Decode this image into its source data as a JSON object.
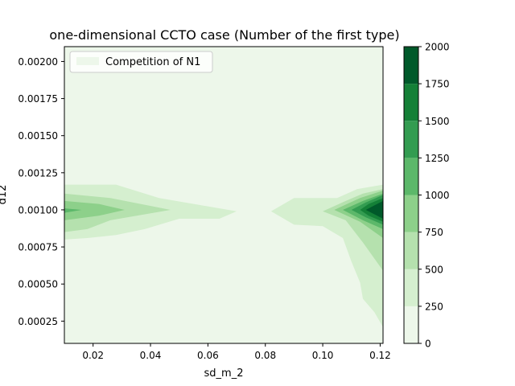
{
  "chart_data": {
    "type": "contourf",
    "title": "one-dimensional CCTO case (Number of the first type)",
    "xlabel": "sd_m_2",
    "ylabel": "d12",
    "xlim": [
      0.01,
      0.121
    ],
    "ylim": [
      0.0001,
      0.0021
    ],
    "xticks": [
      0.02,
      0.04,
      0.06,
      0.08,
      0.1,
      0.12
    ],
    "xtick_labels": [
      "0.02",
      "0.04",
      "0.06",
      "0.08",
      "0.10",
      "0.12"
    ],
    "yticks": [
      0.00025,
      0.0005,
      0.00075,
      0.001,
      0.00125,
      0.0015,
      0.00175,
      0.002
    ],
    "ytick_labels": [
      "0.00025",
      "0.00050",
      "0.00075",
      "0.00100",
      "0.00125",
      "0.00150",
      "0.00175",
      "0.00200"
    ],
    "legend": {
      "label": "Competition of N1",
      "placement": "top-left"
    },
    "grid": false,
    "colorbar": {
      "levels": [
        0,
        250,
        500,
        750,
        1000,
        1250,
        1500,
        1750,
        2000
      ],
      "tick_labels": [
        "0",
        "250",
        "500",
        "750",
        "1000",
        "1250",
        "1500",
        "1750",
        "2000"
      ],
      "colors": [
        "#edf7ea",
        "#d5efcf",
        "#b5e1ae",
        "#8dd08a",
        "#5cb86a",
        "#339c51",
        "#148037",
        "#00592a"
      ]
    },
    "peaks": [
      {
        "x": 0.01,
        "y": 0.001,
        "value": 1050
      },
      {
        "x": 0.121,
        "y": 0.001,
        "value": 2000
      }
    ],
    "contours": [
      {
        "level": 250,
        "points": [
          [
            0.01,
            0.00117
          ],
          [
            0.028,
            0.00117
          ],
          [
            0.043,
            0.00108
          ],
          [
            0.07,
            0.00099
          ],
          [
            0.064,
            0.00094
          ],
          [
            0.05,
            0.00094
          ],
          [
            0.038,
            0.00087
          ],
          [
            0.028,
            0.00083
          ],
          [
            0.018,
            0.00081
          ],
          [
            0.01,
            0.0008
          ]
        ]
      },
      {
        "level": 250,
        "points": [
          [
            0.121,
            0.00117
          ],
          [
            0.112,
            0.00114
          ],
          [
            0.105,
            0.00108
          ],
          [
            0.09,
            0.00108
          ],
          [
            0.082,
            0.00099
          ],
          [
            0.09,
            0.0009
          ],
          [
            0.1,
            0.00089
          ],
          [
            0.107,
            0.00081
          ],
          [
            0.11,
            0.00065
          ],
          [
            0.113,
            0.00051
          ],
          [
            0.114,
            0.0004
          ],
          [
            0.118,
            0.00031
          ],
          [
            0.121,
            0.00021
          ]
        ]
      },
      {
        "level": 500,
        "points": [
          [
            0.01,
            0.00111
          ],
          [
            0.026,
            0.00108
          ],
          [
            0.047,
            0.001
          ],
          [
            0.026,
            0.00093
          ],
          [
            0.018,
            0.00087
          ],
          [
            0.01,
            0.00085
          ]
        ]
      },
      {
        "level": 500,
        "points": [
          [
            0.121,
            0.00114
          ],
          [
            0.114,
            0.00111
          ],
          [
            0.108,
            0.00106
          ],
          [
            0.1,
            0.00099
          ],
          [
            0.108,
            0.00093
          ],
          [
            0.114,
            0.00078
          ],
          [
            0.121,
            0.00059
          ]
        ]
      },
      {
        "level": 750,
        "points": [
          [
            0.01,
            0.00106
          ],
          [
            0.022,
            0.00104
          ],
          [
            0.031,
            0.001
          ],
          [
            0.022,
            0.00096
          ],
          [
            0.01,
            0.00093
          ]
        ]
      },
      {
        "level": 750,
        "points": [
          [
            0.121,
            0.00113
          ],
          [
            0.113,
            0.00108
          ],
          [
            0.104,
            0.001
          ],
          [
            0.113,
            0.00092
          ],
          [
            0.121,
            0.00081
          ]
        ]
      },
      {
        "level": 1000,
        "points": [
          [
            0.01,
            0.00101
          ],
          [
            0.016,
            0.001
          ],
          [
            0.01,
            0.00098
          ]
        ]
      },
      {
        "level": 1000,
        "points": [
          [
            0.121,
            0.00111
          ],
          [
            0.114,
            0.00106
          ],
          [
            0.107,
            0.001
          ],
          [
            0.114,
            0.00093
          ],
          [
            0.121,
            0.00087
          ]
        ]
      },
      {
        "level": 1250,
        "points": [
          [
            0.121,
            0.0011
          ],
          [
            0.115,
            0.00105
          ],
          [
            0.11,
            0.001
          ],
          [
            0.115,
            0.00095
          ],
          [
            0.121,
            0.0009
          ]
        ]
      },
      {
        "level": 1500,
        "points": [
          [
            0.121,
            0.00108
          ],
          [
            0.116,
            0.00104
          ],
          [
            0.113,
            0.001
          ],
          [
            0.116,
            0.00096
          ],
          [
            0.121,
            0.00092
          ]
        ]
      },
      {
        "level": 1750,
        "points": [
          [
            0.121,
            0.00106
          ],
          [
            0.118,
            0.00103
          ],
          [
            0.115,
            0.001
          ],
          [
            0.118,
            0.00097
          ],
          [
            0.121,
            0.00094
          ]
        ]
      }
    ]
  }
}
